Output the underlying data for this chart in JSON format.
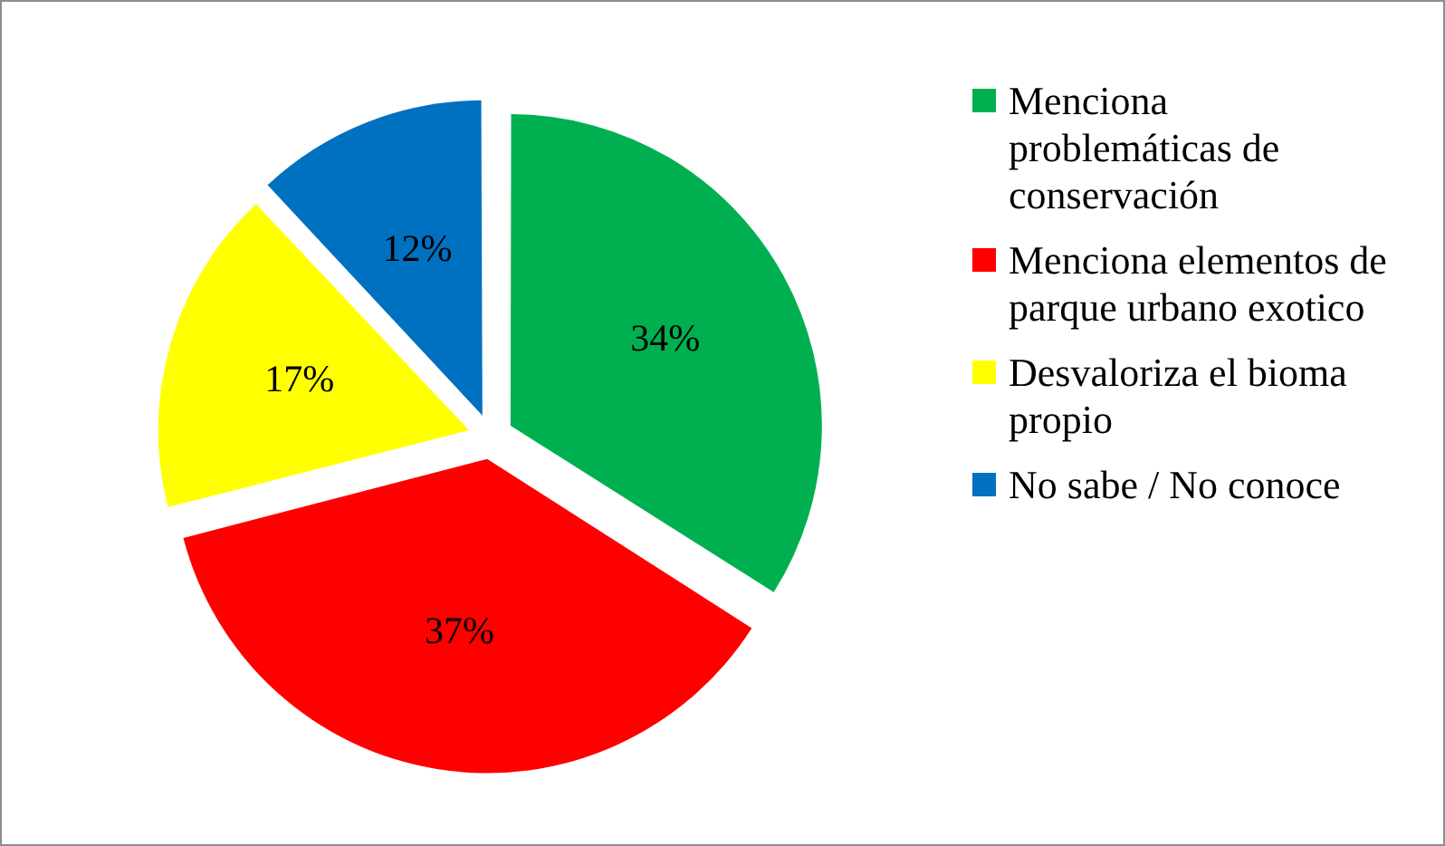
{
  "chart_data": {
    "type": "pie",
    "categories": [
      "Menciona problemáticas de conservación",
      "Menciona elementos de parque urbano exotico",
      "Desvaloriza el bioma propio",
      "No sabe / No conoce"
    ],
    "values": [
      34,
      37,
      17,
      12
    ],
    "colors": [
      "#00b050",
      "#ff0000",
      "#ffff00",
      "#0070c0"
    ],
    "value_labels": [
      "34%",
      "37%",
      "17%",
      "12%"
    ],
    "legend": "right"
  }
}
